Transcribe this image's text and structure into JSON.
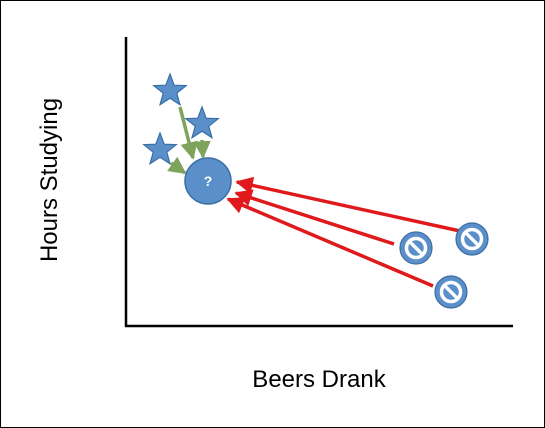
{
  "axes": {
    "x_label": "Beers Drank",
    "y_label": "Hours Studying"
  },
  "query_point": {
    "label": "?"
  },
  "icons": {
    "neighbor_star": "star-icon",
    "far_point": "no-symbol-icon",
    "query": "circle-icon"
  },
  "colors": {
    "marker_fill": "#5b8fc9",
    "marker_stroke": "#3a6ea5",
    "near_arrow": "#7ea35a",
    "far_arrow": "#e0191c",
    "axis": "#000000"
  }
}
